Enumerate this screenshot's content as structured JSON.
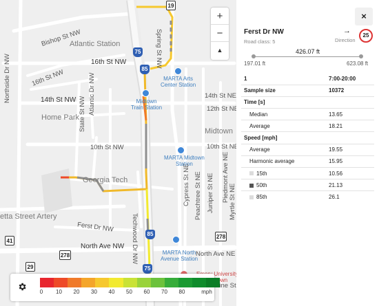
{
  "map": {
    "labels": {
      "bishop": "Bishop St NW",
      "atlantic": "Atlantic Station",
      "sixteenth": "16th St NW",
      "sixteenth_small": "16th St NW",
      "spring": "Spring St NW",
      "northside": "Northside Dr NW",
      "arts": "MARTA Arts\nCenter Station",
      "fourteenth": "14th St NW",
      "fourteenth_ne": "14th St NE",
      "midtown_train": "Midtown\nTrain Station",
      "home_park": "Home Park",
      "state": "State St NW",
      "atlantic_dr": "Atlantic Dr NW",
      "twelfth": "12th St NE",
      "midtown": "Midtown",
      "tenth": "10th St NW",
      "tenth_ne": "10th St NE",
      "marta_midtown": "MARTA Midtown\nStation",
      "georgia_tech": "Georgia Tech",
      "techwood": "Techwood Dr NW",
      "cypress": "Cypress St NE",
      "peachtree": "Peachtree St NE",
      "juniper": "Juniper St NE",
      "piedmont": "Piedmont Ave NE",
      "myrtle": "Myrtle St NE",
      "etta": "etta Street Artery",
      "ferst": "Ferst Dr NW",
      "north_ave": "North Ave NW",
      "north_ave_ne": "North Ave NE",
      "marta_north": "MARTA North\nAvenue Station",
      "emory": "Emory University\nMidtown",
      "pine": "Pine St NE"
    },
    "shields": {
      "s19": "19",
      "i75a": "75",
      "i85a": "85",
      "i85b": "85",
      "i75b": "75",
      "s41": "41",
      "s278a": "278",
      "s278b": "278",
      "s29": "29"
    },
    "zoom": {
      "in": "+",
      "out": "−",
      "compass": "▲"
    }
  },
  "legend": {
    "unit": "mph",
    "ticks": [
      "0",
      "10",
      "20",
      "30",
      "40",
      "50",
      "60",
      "70",
      "80"
    ],
    "colors": [
      "#e8262e",
      "#ee4a28",
      "#f07a2a",
      "#f4a52a",
      "#f6c82e",
      "#f2ea30",
      "#c9e236",
      "#99d33a",
      "#6cc23c",
      "#36ad3a",
      "#1a9a32",
      "#0f8c2c",
      "#0a7d26"
    ]
  },
  "panel": {
    "close": "×",
    "title": "Ferst Dr NW",
    "road_class": "Road class: 5",
    "direction_arrow": "→",
    "direction_label": "Direction",
    "speed_limit": "25",
    "length": "426.07 ft",
    "length_min": "197.01 ft",
    "length_max": "623.08 ft",
    "rows": [
      {
        "label": "1",
        "value": "7:00-20:00",
        "type": "hdr"
      },
      {
        "label": "Sample size",
        "value": "10372",
        "type": "bold"
      },
      {
        "label": "Time [s]",
        "value": "",
        "type": "hdr"
      },
      {
        "label": "Median",
        "value": "13.65",
        "type": "ind"
      },
      {
        "label": "Average",
        "value": "18.21",
        "type": "ind"
      },
      {
        "label": "Speed [mph]",
        "value": "",
        "type": "hdr"
      },
      {
        "label": "Average",
        "value": "19.55",
        "type": "ind"
      },
      {
        "label": "Harmonic average",
        "value": "15.95",
        "type": "ind"
      },
      {
        "label": "15th",
        "value": "10.56",
        "type": "pct",
        "swatch": "#dcdcdc"
      },
      {
        "label": "50th",
        "value": "21.13",
        "type": "pct",
        "swatch": "#555555"
      },
      {
        "label": "85th",
        "value": "26.1",
        "type": "pct",
        "swatch": "#dcdcdc"
      }
    ]
  }
}
